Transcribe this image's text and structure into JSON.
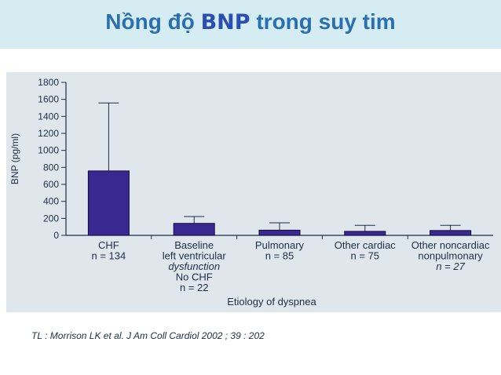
{
  "header": {
    "title_prefix": "Nồng độ ",
    "title_highlight": "BNP",
    "title_suffix": " trong suy tim"
  },
  "citation": "TL : Morrison LK et al. J Am Coll Cardiol 2002 ; 39 : 202",
  "colors": {
    "title": "#2a6fb0",
    "bar": "#3a2891",
    "panel": "#dfe6ec",
    "title_bar": "#d6ecf3"
  },
  "chart_data": {
    "type": "bar",
    "ylabel": "BNP (pg/ml)",
    "xlabel": "Etiology of dyspnea",
    "ylim": [
      0,
      1800
    ],
    "yticks": [
      0,
      200,
      400,
      600,
      800,
      1000,
      1200,
      1400,
      1600,
      1800
    ],
    "categories": [
      {
        "lines": [
          {
            "text": "CHF",
            "italic": false
          },
          {
            "text": "n = 134",
            "italic": false
          }
        ]
      },
      {
        "lines": [
          {
            "text": "Baseline",
            "italic": false
          },
          {
            "text": "left ventricular",
            "italic": false
          },
          {
            "text": "dysfunction",
            "italic": true
          },
          {
            "text": "No CHF",
            "italic": false
          },
          {
            "text": "n = 22",
            "italic": false
          }
        ]
      },
      {
        "lines": [
          {
            "text": "Pulmonary",
            "italic": false
          },
          {
            "text": "n = 85",
            "italic": false
          }
        ]
      },
      {
        "lines": [
          {
            "text": "Other cardiac",
            "italic": false
          },
          {
            "text": "n = 75",
            "italic": false
          }
        ]
      },
      {
        "lines": [
          {
            "text": "Other noncardiac",
            "italic": false
          },
          {
            "text": "nonpulmonary",
            "italic": false
          },
          {
            "text": "n = 27",
            "italic": true
          }
        ]
      }
    ],
    "values": [
      758,
      141,
      61,
      47,
      57
    ],
    "error_upper": [
      1558,
      221,
      148,
      118,
      118
    ],
    "grid": false,
    "legend": "none"
  }
}
